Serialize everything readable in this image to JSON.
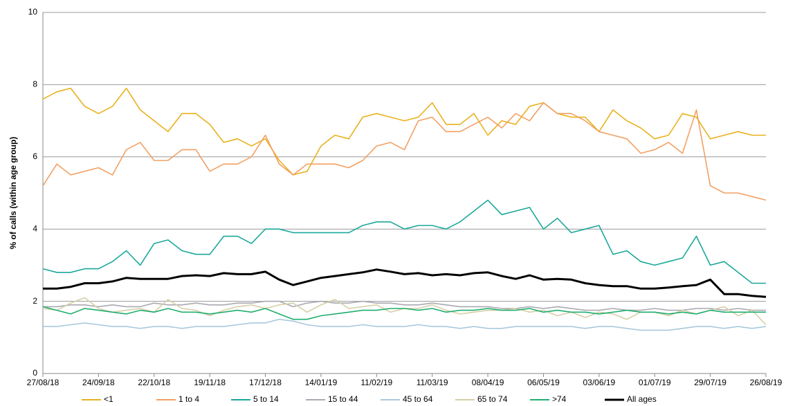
{
  "chart_data": {
    "type": "line",
    "y_label": "% of calls (within age group)",
    "x": [
      "27/08/18",
      "03/09/18",
      "10/09/18",
      "17/09/18",
      "24/09/18",
      "01/10/18",
      "08/10/18",
      "15/10/18",
      "22/10/18",
      "29/10/18",
      "05/11/18",
      "12/11/18",
      "19/11/18",
      "26/11/18",
      "03/12/18",
      "10/12/18",
      "17/12/18",
      "24/12/18",
      "31/12/18",
      "07/01/19",
      "14/01/19",
      "21/01/19",
      "28/01/19",
      "04/02/19",
      "11/02/19",
      "18/02/19",
      "25/02/19",
      "04/03/19",
      "11/03/19",
      "18/03/19",
      "25/03/19",
      "01/04/19",
      "08/04/19",
      "15/04/19",
      "22/04/19",
      "29/04/19",
      "06/05/19",
      "13/05/19",
      "20/05/19",
      "27/05/19",
      "03/06/19",
      "10/06/19",
      "17/06/19",
      "24/06/19",
      "01/07/19",
      "08/07/19",
      "15/07/19",
      "22/07/19",
      "29/07/19",
      "05/08/19",
      "12/08/19",
      "19/08/19",
      "26/08/19"
    ],
    "xlim": [
      "27/08/18",
      "26/08/19"
    ],
    "xticks": [
      "27/08/18",
      "24/09/18",
      "22/10/18",
      "19/11/18",
      "17/12/18",
      "14/01/19",
      "11/02/19",
      "11/03/19",
      "08/04/19",
      "06/05/19",
      "03/06/19",
      "01/07/19",
      "29/07/19",
      "26/08/19"
    ],
    "ylim": [
      0,
      10
    ],
    "yticks": [
      0,
      2,
      4,
      6,
      8,
      10
    ],
    "grid": true,
    "series": [
      {
        "name": "<1",
        "color": "#e8b11c",
        "values": [
          7.6,
          7.8,
          7.9,
          7.4,
          7.2,
          7.4,
          7.9,
          7.3,
          7.0,
          6.7,
          7.2,
          7.2,
          6.9,
          6.4,
          6.5,
          6.3,
          6.5,
          5.9,
          5.5,
          5.6,
          6.3,
          6.6,
          6.5,
          7.1,
          7.2,
          7.1,
          7.0,
          7.1,
          7.5,
          6.9,
          6.9,
          7.2,
          6.6,
          7.0,
          6.9,
          7.4,
          7.5,
          7.2,
          7.1,
          7.1,
          6.7,
          7.3,
          7.0,
          6.8,
          6.5,
          6.6,
          7.2,
          7.1,
          6.5,
          6.6,
          6.7,
          6.6,
          6.6
        ]
      },
      {
        "name": "1 to 4",
        "color": "#f1a063",
        "values": [
          5.2,
          5.8,
          5.5,
          5.6,
          5.7,
          5.5,
          6.2,
          6.4,
          5.9,
          5.9,
          6.2,
          6.2,
          5.6,
          5.8,
          5.8,
          6.0,
          6.6,
          5.8,
          5.5,
          5.8,
          5.8,
          5.8,
          5.7,
          5.9,
          6.3,
          6.4,
          6.2,
          7.0,
          7.1,
          6.7,
          6.7,
          6.9,
          7.1,
          6.8,
          7.2,
          7.0,
          7.5,
          7.2,
          7.2,
          7.0,
          6.7,
          6.6,
          6.5,
          6.1,
          6.2,
          6.4,
          6.1,
          7.3,
          5.2,
          5.0,
          5.0,
          4.9,
          4.8
        ]
      },
      {
        "name": "5 to 14",
        "color": "#1aa89a",
        "values": [
          2.9,
          2.8,
          2.8,
          2.9,
          2.9,
          3.1,
          3.4,
          3.0,
          3.6,
          3.7,
          3.4,
          3.3,
          3.3,
          3.8,
          3.8,
          3.6,
          4.0,
          4.0,
          3.9,
          3.9,
          3.9,
          3.9,
          3.9,
          4.1,
          4.2,
          4.2,
          4.0,
          4.1,
          4.1,
          4.0,
          4.2,
          4.5,
          4.8,
          4.4,
          4.5,
          4.6,
          4.0,
          4.3,
          3.9,
          4.0,
          4.1,
          3.3,
          3.4,
          3.1,
          3.0,
          3.1,
          3.2,
          3.8,
          3.0,
          3.1,
          2.8,
          2.5,
          2.5
        ]
      },
      {
        "name": "15 to 44",
        "color": "#a9a9b1",
        "values": [
          1.85,
          1.85,
          1.9,
          1.9,
          1.85,
          1.9,
          1.85,
          1.85,
          1.95,
          1.9,
          1.9,
          1.95,
          1.9,
          1.9,
          1.95,
          1.95,
          2.0,
          2.0,
          1.85,
          1.95,
          2.0,
          1.95,
          1.95,
          2.0,
          1.95,
          1.95,
          1.9,
          1.9,
          1.95,
          1.9,
          1.85,
          1.85,
          1.85,
          1.8,
          1.8,
          1.85,
          1.8,
          1.85,
          1.8,
          1.75,
          1.75,
          1.8,
          1.75,
          1.75,
          1.8,
          1.75,
          1.75,
          1.8,
          1.8,
          1.75,
          1.8,
          1.75,
          1.75
        ]
      },
      {
        "name": "45 to 64",
        "color": "#a9c9dd",
        "values": [
          1.3,
          1.3,
          1.35,
          1.4,
          1.35,
          1.3,
          1.3,
          1.25,
          1.3,
          1.3,
          1.25,
          1.3,
          1.3,
          1.3,
          1.35,
          1.4,
          1.4,
          1.5,
          1.45,
          1.35,
          1.3,
          1.3,
          1.3,
          1.35,
          1.3,
          1.3,
          1.3,
          1.35,
          1.3,
          1.3,
          1.25,
          1.3,
          1.25,
          1.25,
          1.3,
          1.3,
          1.3,
          1.3,
          1.3,
          1.25,
          1.3,
          1.3,
          1.25,
          1.2,
          1.2,
          1.2,
          1.25,
          1.3,
          1.3,
          1.25,
          1.3,
          1.25,
          1.3
        ]
      },
      {
        "name": "65 to 74",
        "color": "#d5cfa6",
        "values": [
          1.8,
          1.75,
          1.95,
          2.1,
          1.8,
          1.7,
          1.75,
          1.8,
          1.7,
          2.05,
          1.8,
          1.75,
          1.6,
          1.75,
          1.85,
          1.9,
          1.8,
          1.9,
          1.95,
          1.7,
          1.9,
          2.05,
          1.8,
          1.85,
          1.9,
          1.7,
          1.8,
          1.8,
          1.9,
          1.75,
          1.65,
          1.7,
          1.75,
          1.75,
          1.8,
          1.7,
          1.75,
          1.6,
          1.7,
          1.55,
          1.7,
          1.65,
          1.5,
          1.7,
          1.7,
          1.6,
          1.75,
          1.65,
          1.75,
          1.85,
          1.6,
          1.75,
          1.35
        ]
      },
      {
        "name": ">74",
        "color": "#1fae6e",
        "values": [
          1.85,
          1.75,
          1.65,
          1.8,
          1.75,
          1.7,
          1.65,
          1.75,
          1.7,
          1.8,
          1.7,
          1.7,
          1.65,
          1.7,
          1.75,
          1.7,
          1.8,
          1.65,
          1.5,
          1.5,
          1.6,
          1.65,
          1.7,
          1.75,
          1.75,
          1.8,
          1.8,
          1.75,
          1.8,
          1.7,
          1.75,
          1.75,
          1.8,
          1.75,
          1.75,
          1.8,
          1.7,
          1.75,
          1.7,
          1.7,
          1.65,
          1.7,
          1.75,
          1.7,
          1.7,
          1.65,
          1.7,
          1.65,
          1.75,
          1.7,
          1.7,
          1.7,
          1.7
        ]
      },
      {
        "name": "All ages",
        "color": "#000000",
        "values": [
          2.35,
          2.35,
          2.4,
          2.5,
          2.5,
          2.55,
          2.65,
          2.62,
          2.62,
          2.62,
          2.7,
          2.72,
          2.7,
          2.78,
          2.75,
          2.75,
          2.82,
          2.6,
          2.45,
          2.55,
          2.65,
          2.7,
          2.75,
          2.8,
          2.88,
          2.82,
          2.75,
          2.78,
          2.72,
          2.75,
          2.72,
          2.78,
          2.8,
          2.7,
          2.62,
          2.72,
          2.6,
          2.62,
          2.6,
          2.5,
          2.45,
          2.42,
          2.42,
          2.35,
          2.35,
          2.38,
          2.42,
          2.45,
          2.6,
          2.2,
          2.2,
          2.15,
          2.12
        ]
      }
    ]
  }
}
